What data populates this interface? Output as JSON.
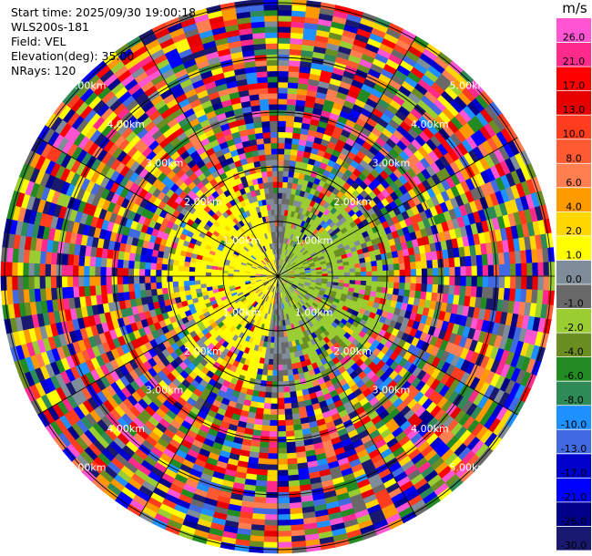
{
  "header": {
    "start_time": "Start time: 2025/09/30 19:00:18",
    "instrument": "WLS200s-181",
    "field": "Field: VEL",
    "elevation": "Elevation(deg): 35.00",
    "nrays": "NRays: 120"
  },
  "chart_data": {
    "type": "heatmap",
    "projection": "polar-ppi",
    "field": "VEL",
    "units": "m/s",
    "elevation_deg": 35.0,
    "n_rays": 120,
    "range_rings_km": [
      1.0,
      2.0,
      3.0,
      4.0,
      5.0
    ],
    "ring_labels": [
      "1.00km",
      "2.00km",
      "3.00km",
      "4.00km",
      "5.00km"
    ],
    "colorbar": {
      "unit_label": "m/s",
      "ticks": [
        "26.0",
        "21.0",
        "17.0",
        "13.0",
        "10.0",
        "8.0",
        "6.0",
        "4.0",
        "2.0",
        "1.0",
        "0.0",
        "-1.0",
        "-2.0",
        "-4.0",
        "-6.0",
        "-8.0",
        "-10.0",
        "-13.0",
        "-17.0",
        "-21.0",
        "-26.0",
        "-30.0"
      ],
      "bounds": [
        30,
        26,
        21,
        17,
        13,
        10,
        8,
        6,
        4,
        2,
        1,
        0,
        -1,
        -2,
        -4,
        -6,
        -8,
        -10,
        -13,
        -17,
        -21,
        -26,
        -30
      ],
      "colors": [
        "#ff55d2",
        "#ff2a8c",
        "#ff0000",
        "#e60000",
        "#ff3c1e",
        "#ff5a32",
        "#ff7f50",
        "#ff9900",
        "#ffd700",
        "#ffff00",
        "#7f8c99",
        "#696969",
        "#9acd32",
        "#6b8e23",
        "#228b22",
        "#2e8b57",
        "#1e90ff",
        "#4169e1",
        "#0000cd",
        "#0000ff",
        "#00008b",
        "#191970"
      ]
    },
    "pattern": {
      "inner_radius_km": 1.0,
      "approaching_sector": "west (yellow, ~+2 to +4 m/s)",
      "receding_sector": "east (olive/green, ~-1 to -2 m/s)",
      "noise_beyond_km": 2.0
    }
  }
}
